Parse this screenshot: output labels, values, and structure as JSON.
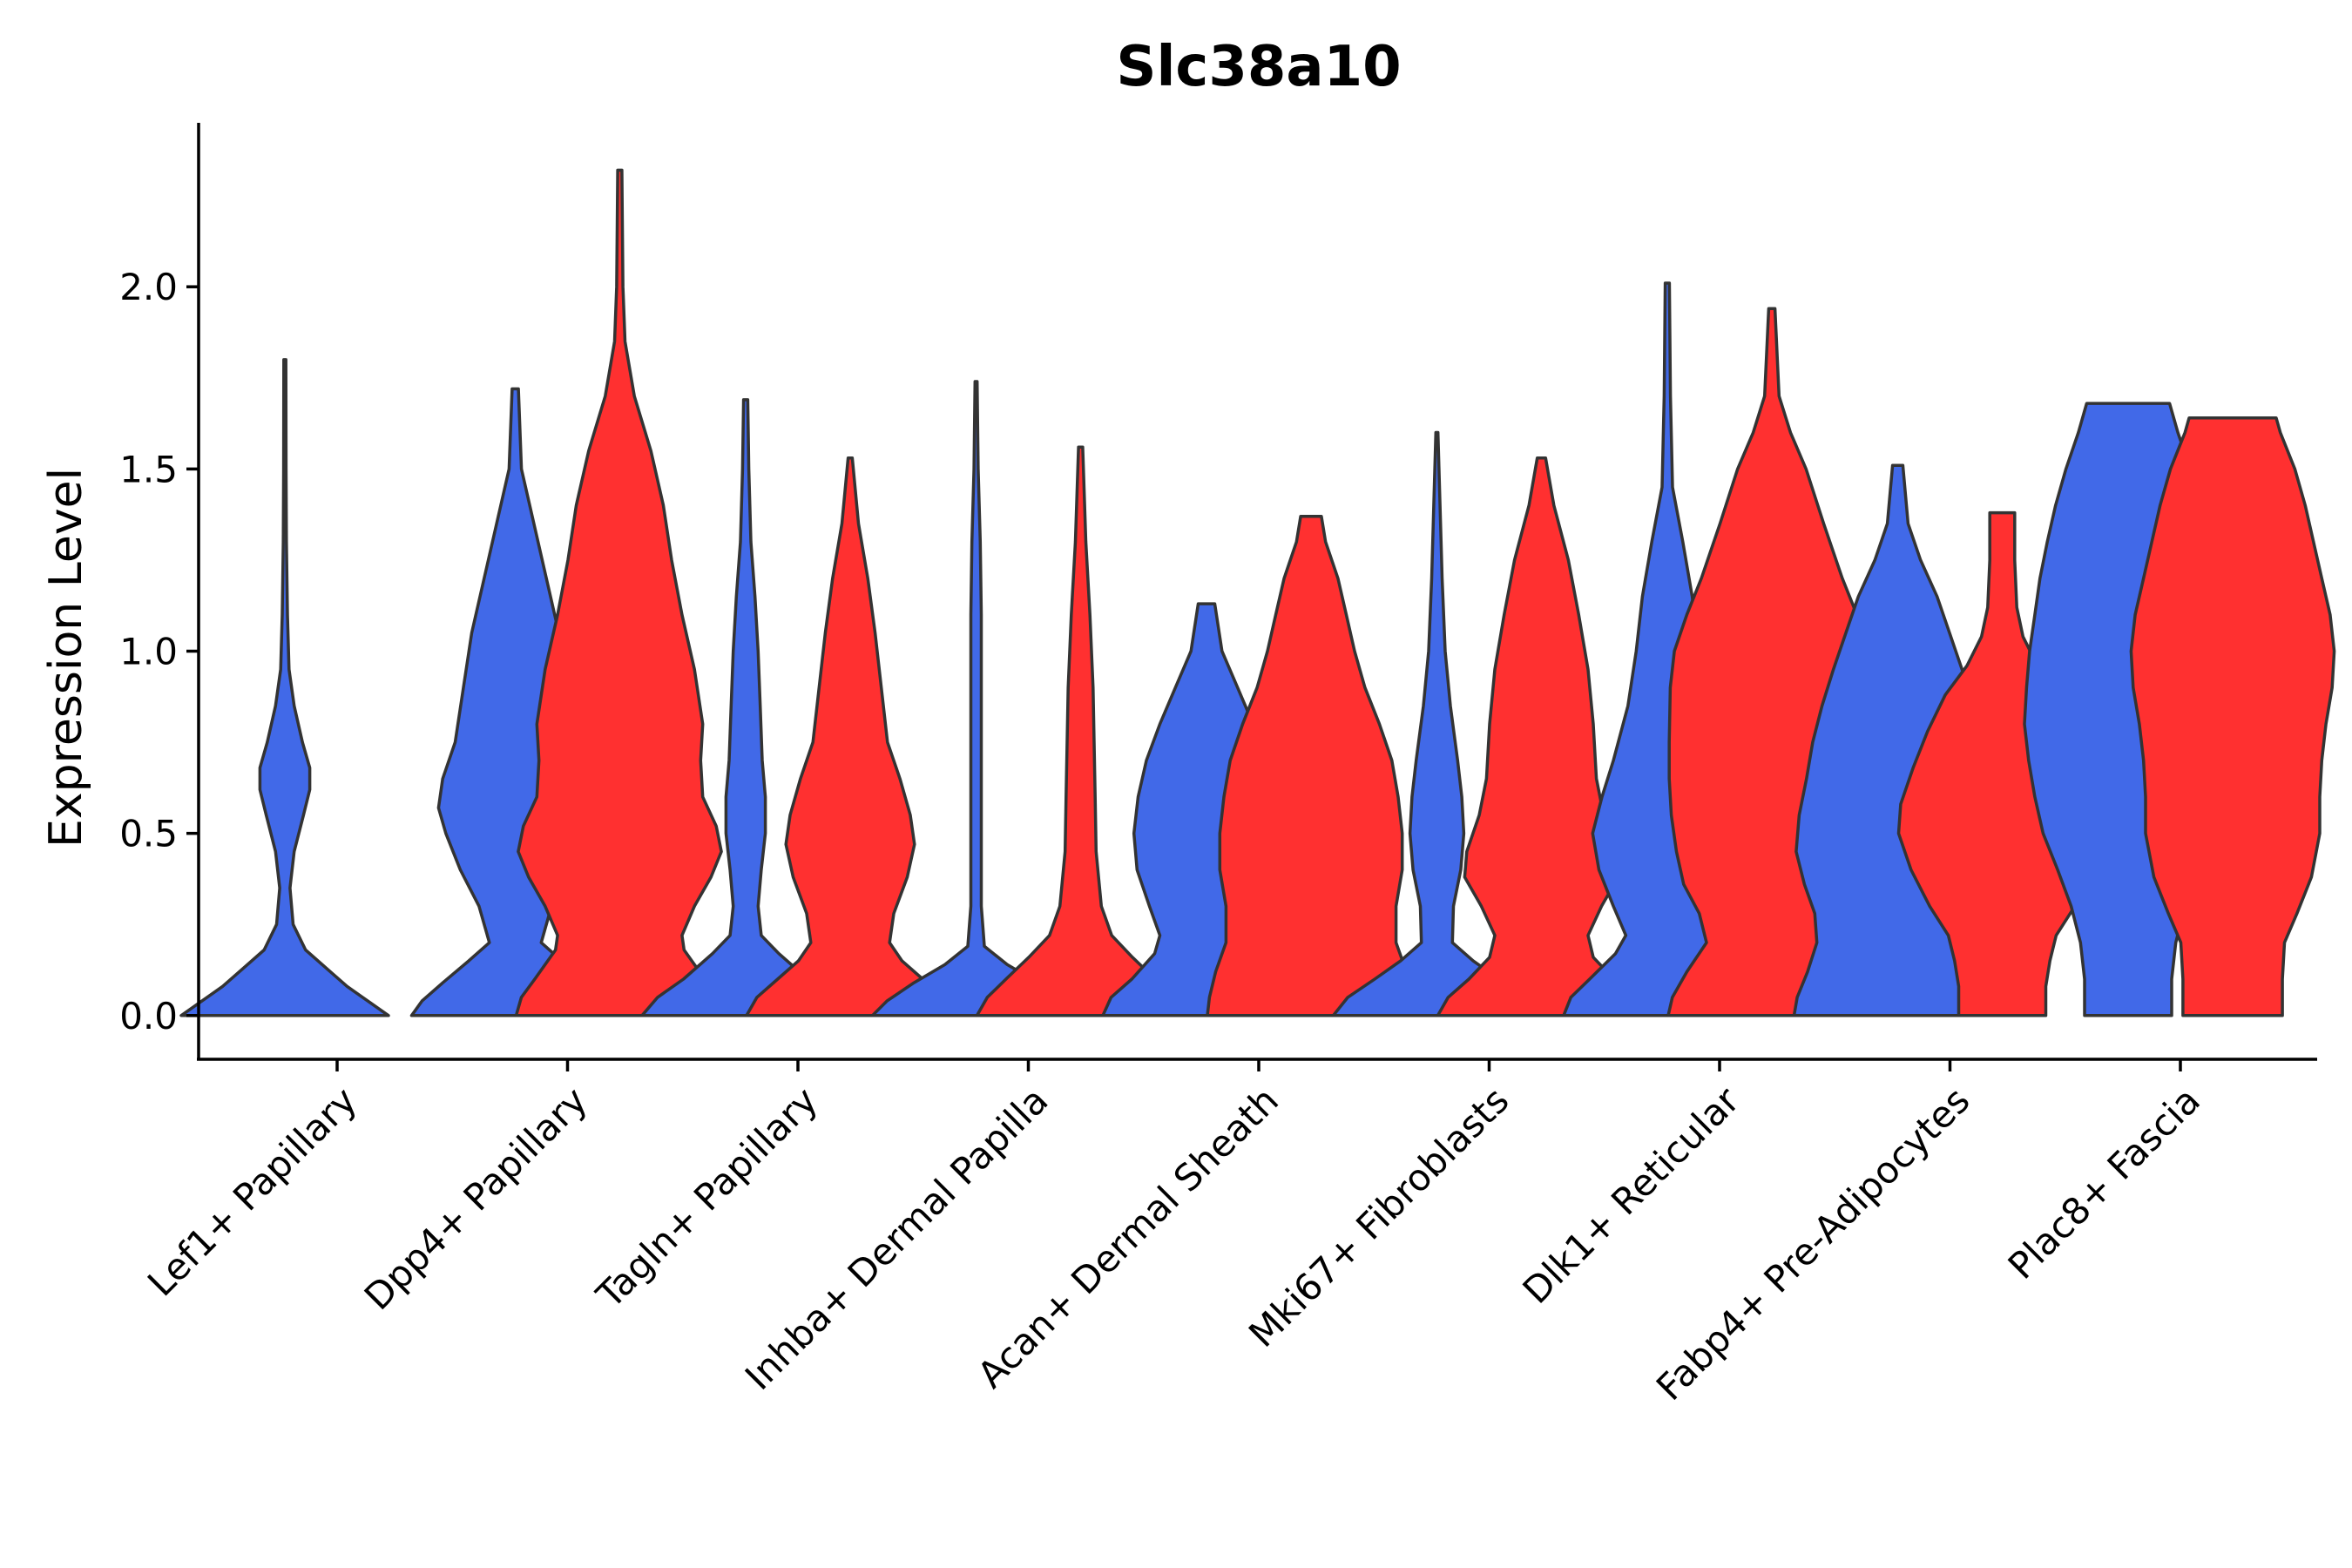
{
  "chart_data": {
    "type": "violin",
    "title": "Slc38a10",
    "xlabel": "",
    "ylabel": "Expression Level",
    "ylim": [
      -0.12,
      2.45
    ],
    "yticks": [
      "0.0",
      "0.5",
      "1.0",
      "1.5",
      "2.0"
    ],
    "ytick_values": [
      0,
      0.5,
      1.0,
      1.5,
      2.0
    ],
    "grid": false,
    "legend": "none",
    "series_colors": [
      "#4169E8",
      "#FF3030"
    ],
    "categories": [
      "Lef1+ Papillary",
      "Dpp4+ Papillary",
      "Tagln+ Papillary",
      "Inhba+ Dermal Papilla",
      "Acan+ Dermal Sheath",
      "Mki67+ Fibroblasts",
      "Dlk1+ Reticular",
      "Fabp4+ Pre-Adipocytes",
      "Plac8+ Fascia"
    ],
    "violins": [
      {
        "category": "Lef1+ Papillary",
        "group": 0,
        "max": 1.8,
        "profile": [
          [
            0,
            1.0
          ],
          [
            0.04,
            0.8
          ],
          [
            0.08,
            0.6
          ],
          [
            0.13,
            0.4
          ],
          [
            0.18,
            0.2
          ],
          [
            0.25,
            0.08
          ],
          [
            0.35,
            0.05
          ],
          [
            0.45,
            0.09
          ],
          [
            0.55,
            0.18
          ],
          [
            0.62,
            0.24
          ],
          [
            0.68,
            0.24
          ],
          [
            0.75,
            0.17
          ],
          [
            0.85,
            0.09
          ],
          [
            0.95,
            0.04
          ],
          [
            1.1,
            0.025
          ],
          [
            1.3,
            0.015
          ],
          [
            1.5,
            0.012
          ],
          [
            1.8,
            0.01
          ]
        ]
      },
      {
        "category": "Dpp4+ Papillary",
        "group": 0,
        "max": 1.72,
        "profile": [
          [
            0,
            1.0
          ],
          [
            0.04,
            0.9
          ],
          [
            0.09,
            0.7
          ],
          [
            0.15,
            0.45
          ],
          [
            0.2,
            0.25
          ],
          [
            0.3,
            0.35
          ],
          [
            0.4,
            0.53
          ],
          [
            0.5,
            0.67
          ],
          [
            0.57,
            0.74
          ],
          [
            0.65,
            0.7
          ],
          [
            0.75,
            0.58
          ],
          [
            0.9,
            0.5
          ],
          [
            1.05,
            0.42
          ],
          [
            1.2,
            0.3
          ],
          [
            1.35,
            0.18
          ],
          [
            1.5,
            0.06
          ],
          [
            1.72,
            0.03
          ]
        ]
      },
      {
        "category": "Dpp4+ Papillary",
        "group": 1,
        "max": 2.32,
        "profile": [
          [
            0,
            1.0
          ],
          [
            0.05,
            0.95
          ],
          [
            0.1,
            0.82
          ],
          [
            0.18,
            0.62
          ],
          [
            0.22,
            0.6
          ],
          [
            0.3,
            0.72
          ],
          [
            0.38,
            0.88
          ],
          [
            0.45,
            0.98
          ],
          [
            0.52,
            0.93
          ],
          [
            0.6,
            0.8
          ],
          [
            0.7,
            0.78
          ],
          [
            0.8,
            0.8
          ],
          [
            0.95,
            0.72
          ],
          [
            1.1,
            0.6
          ],
          [
            1.25,
            0.5
          ],
          [
            1.4,
            0.42
          ],
          [
            1.55,
            0.3
          ],
          [
            1.7,
            0.14
          ],
          [
            1.85,
            0.05
          ],
          [
            2.0,
            0.03
          ],
          [
            2.32,
            0.02
          ]
        ]
      },
      {
        "category": "Tagln+ Papillary",
        "group": 0,
        "max": 1.69,
        "profile": [
          [
            0,
            1.0
          ],
          [
            0.05,
            0.85
          ],
          [
            0.1,
            0.6
          ],
          [
            0.17,
            0.32
          ],
          [
            0.22,
            0.15
          ],
          [
            0.3,
            0.12
          ],
          [
            0.4,
            0.15
          ],
          [
            0.5,
            0.19
          ],
          [
            0.6,
            0.19
          ],
          [
            0.7,
            0.16
          ],
          [
            0.85,
            0.14
          ],
          [
            1.0,
            0.12
          ],
          [
            1.15,
            0.09
          ],
          [
            1.3,
            0.05
          ],
          [
            1.5,
            0.03
          ],
          [
            1.69,
            0.02
          ]
        ]
      },
      {
        "category": "Tagln+ Papillary",
        "group": 1,
        "max": 1.53,
        "profile": [
          [
            0,
            1.0
          ],
          [
            0.05,
            0.9
          ],
          [
            0.1,
            0.7
          ],
          [
            0.15,
            0.5
          ],
          [
            0.2,
            0.38
          ],
          [
            0.28,
            0.42
          ],
          [
            0.38,
            0.55
          ],
          [
            0.47,
            0.62
          ],
          [
            0.55,
            0.58
          ],
          [
            0.65,
            0.48
          ],
          [
            0.75,
            0.36
          ],
          [
            0.9,
            0.3
          ],
          [
            1.05,
            0.24
          ],
          [
            1.2,
            0.17
          ],
          [
            1.35,
            0.08
          ],
          [
            1.53,
            0.02
          ]
        ]
      },
      {
        "category": "Inhba+ Dermal Papilla",
        "group": 0,
        "max": 1.74,
        "profile": [
          [
            0,
            1.0
          ],
          [
            0.04,
            0.86
          ],
          [
            0.09,
            0.6
          ],
          [
            0.14,
            0.3
          ],
          [
            0.19,
            0.08
          ],
          [
            0.3,
            0.05
          ],
          [
            0.5,
            0.05
          ],
          [
            0.7,
            0.05
          ],
          [
            0.9,
            0.05
          ],
          [
            1.1,
            0.05
          ],
          [
            1.3,
            0.04
          ],
          [
            1.5,
            0.02
          ],
          [
            1.74,
            0.01
          ]
        ]
      },
      {
        "category": "Inhba+ Dermal Papilla",
        "group": 1,
        "max": 1.56,
        "profile": [
          [
            0,
            1.0
          ],
          [
            0.05,
            0.9
          ],
          [
            0.1,
            0.72
          ],
          [
            0.16,
            0.5
          ],
          [
            0.22,
            0.3
          ],
          [
            0.3,
            0.2
          ],
          [
            0.45,
            0.15
          ],
          [
            0.6,
            0.14
          ],
          [
            0.75,
            0.13
          ],
          [
            0.9,
            0.12
          ],
          [
            1.1,
            0.09
          ],
          [
            1.3,
            0.05
          ],
          [
            1.56,
            0.02
          ]
        ]
      },
      {
        "category": "Acan+ Dermal Sheath",
        "group": 0,
        "max": 1.13,
        "profile": [
          [
            0,
            1.0
          ],
          [
            0.05,
            0.92
          ],
          [
            0.1,
            0.72
          ],
          [
            0.17,
            0.5
          ],
          [
            0.22,
            0.45
          ],
          [
            0.3,
            0.55
          ],
          [
            0.4,
            0.67
          ],
          [
            0.5,
            0.7
          ],
          [
            0.6,
            0.66
          ],
          [
            0.7,
            0.58
          ],
          [
            0.8,
            0.45
          ],
          [
            0.9,
            0.3
          ],
          [
            1.0,
            0.15
          ],
          [
            1.13,
            0.08
          ]
        ]
      },
      {
        "category": "Acan+ Dermal Sheath",
        "group": 1,
        "max": 1.37,
        "profile": [
          [
            0,
            1.0
          ],
          [
            0.05,
            0.98
          ],
          [
            0.12,
            0.92
          ],
          [
            0.2,
            0.82
          ],
          [
            0.3,
            0.82
          ],
          [
            0.4,
            0.88
          ],
          [
            0.5,
            0.88
          ],
          [
            0.6,
            0.84
          ],
          [
            0.7,
            0.78
          ],
          [
            0.8,
            0.66
          ],
          [
            0.9,
            0.52
          ],
          [
            1.0,
            0.42
          ],
          [
            1.1,
            0.34
          ],
          [
            1.2,
            0.26
          ],
          [
            1.3,
            0.14
          ],
          [
            1.37,
            0.1
          ]
        ]
      },
      {
        "category": "Mki67+ Fibroblasts",
        "group": 0,
        "max": 1.6,
        "profile": [
          [
            0,
            1.0
          ],
          [
            0.05,
            0.86
          ],
          [
            0.1,
            0.6
          ],
          [
            0.15,
            0.35
          ],
          [
            0.2,
            0.15
          ],
          [
            0.3,
            0.16
          ],
          [
            0.4,
            0.23
          ],
          [
            0.5,
            0.26
          ],
          [
            0.6,
            0.24
          ],
          [
            0.7,
            0.2
          ],
          [
            0.85,
            0.13
          ],
          [
            1.0,
            0.08
          ],
          [
            1.2,
            0.05
          ],
          [
            1.4,
            0.03
          ],
          [
            1.6,
            0.01
          ]
        ]
      },
      {
        "category": "Mki67+ Fibroblasts",
        "group": 1,
        "max": 1.53,
        "profile": [
          [
            0,
            1.0
          ],
          [
            0.05,
            0.9
          ],
          [
            0.1,
            0.7
          ],
          [
            0.16,
            0.5
          ],
          [
            0.22,
            0.45
          ],
          [
            0.3,
            0.58
          ],
          [
            0.38,
            0.74
          ],
          [
            0.45,
            0.72
          ],
          [
            0.55,
            0.6
          ],
          [
            0.65,
            0.53
          ],
          [
            0.8,
            0.5
          ],
          [
            0.95,
            0.45
          ],
          [
            1.1,
            0.36
          ],
          [
            1.25,
            0.26
          ],
          [
            1.4,
            0.12
          ],
          [
            1.53,
            0.04
          ]
        ]
      },
      {
        "category": "Dlk1+ Reticular",
        "group": 0,
        "max": 2.01,
        "profile": [
          [
            0,
            1.0
          ],
          [
            0.05,
            0.93
          ],
          [
            0.1,
            0.75
          ],
          [
            0.17,
            0.5
          ],
          [
            0.22,
            0.4
          ],
          [
            0.3,
            0.52
          ],
          [
            0.4,
            0.66
          ],
          [
            0.5,
            0.72
          ],
          [
            0.6,
            0.63
          ],
          [
            0.7,
            0.52
          ],
          [
            0.85,
            0.38
          ],
          [
            1.0,
            0.3
          ],
          [
            1.15,
            0.24
          ],
          [
            1.3,
            0.15
          ],
          [
            1.45,
            0.05
          ],
          [
            1.7,
            0.03
          ],
          [
            2.01,
            0.02
          ]
        ]
      },
      {
        "category": "Dlk1+ Reticular",
        "group": 1,
        "max": 1.94,
        "profile": [
          [
            0,
            1.0
          ],
          [
            0.05,
            0.96
          ],
          [
            0.12,
            0.82
          ],
          [
            0.2,
            0.63
          ],
          [
            0.28,
            0.7
          ],
          [
            0.36,
            0.85
          ],
          [
            0.45,
            0.92
          ],
          [
            0.55,
            0.97
          ],
          [
            0.65,
            0.99
          ],
          [
            0.75,
            0.99
          ],
          [
            0.9,
            0.98
          ],
          [
            1.0,
            0.94
          ],
          [
            1.1,
            0.82
          ],
          [
            1.2,
            0.68
          ],
          [
            1.35,
            0.5
          ],
          [
            1.5,
            0.33
          ],
          [
            1.6,
            0.18
          ],
          [
            1.7,
            0.07
          ],
          [
            1.94,
            0.03
          ]
        ]
      },
      {
        "category": "Fabp4+ Pre-Adipocytes",
        "group": 0,
        "max": 1.51,
        "profile": [
          [
            0,
            1.0
          ],
          [
            0.05,
            0.97
          ],
          [
            0.12,
            0.87
          ],
          [
            0.2,
            0.78
          ],
          [
            0.28,
            0.8
          ],
          [
            0.36,
            0.9
          ],
          [
            0.45,
            0.98
          ],
          [
            0.55,
            0.95
          ],
          [
            0.65,
            0.88
          ],
          [
            0.75,
            0.82
          ],
          [
            0.85,
            0.73
          ],
          [
            0.95,
            0.62
          ],
          [
            1.05,
            0.5
          ],
          [
            1.15,
            0.38
          ],
          [
            1.25,
            0.22
          ],
          [
            1.35,
            0.1
          ],
          [
            1.51,
            0.05
          ]
        ]
      },
      {
        "category": "Fabp4+ Pre-Adipocytes",
        "group": 1,
        "max": 1.38,
        "profile": [
          [
            0,
            0.42
          ],
          [
            0.08,
            0.42
          ],
          [
            0.15,
            0.46
          ],
          [
            0.22,
            0.52
          ],
          [
            0.3,
            0.7
          ],
          [
            0.4,
            0.88
          ],
          [
            0.5,
            1.0
          ],
          [
            0.58,
            0.98
          ],
          [
            0.68,
            0.86
          ],
          [
            0.78,
            0.72
          ],
          [
            0.88,
            0.55
          ],
          [
            0.96,
            0.34
          ],
          [
            1.04,
            0.2
          ],
          [
            1.12,
            0.14
          ],
          [
            1.25,
            0.12
          ],
          [
            1.38,
            0.12
          ]
        ]
      },
      {
        "category": "Plac8+ Fascia",
        "group": 0,
        "max": 1.68,
        "profile": [
          [
            0,
            0.42
          ],
          [
            0.1,
            0.42
          ],
          [
            0.2,
            0.46
          ],
          [
            0.3,
            0.55
          ],
          [
            0.4,
            0.68
          ],
          [
            0.5,
            0.82
          ],
          [
            0.6,
            0.9
          ],
          [
            0.7,
            0.96
          ],
          [
            0.8,
            1.0
          ],
          [
            0.9,
            0.98
          ],
          [
            1.0,
            0.95
          ],
          [
            1.1,
            0.9
          ],
          [
            1.2,
            0.85
          ],
          [
            1.3,
            0.78
          ],
          [
            1.4,
            0.7
          ],
          [
            1.5,
            0.6
          ],
          [
            1.6,
            0.48
          ],
          [
            1.68,
            0.4
          ]
        ]
      },
      {
        "category": "Plac8+ Fascia",
        "group": 1,
        "max": 1.64,
        "profile": [
          [
            0,
            0.48
          ],
          [
            0.1,
            0.48
          ],
          [
            0.2,
            0.5
          ],
          [
            0.28,
            0.62
          ],
          [
            0.38,
            0.76
          ],
          [
            0.5,
            0.84
          ],
          [
            0.6,
            0.84
          ],
          [
            0.7,
            0.86
          ],
          [
            0.8,
            0.9
          ],
          [
            0.9,
            0.96
          ],
          [
            1.0,
            0.98
          ],
          [
            1.1,
            0.94
          ],
          [
            1.2,
            0.86
          ],
          [
            1.3,
            0.78
          ],
          [
            1.4,
            0.7
          ],
          [
            1.5,
            0.6
          ],
          [
            1.6,
            0.46
          ],
          [
            1.64,
            0.42
          ]
        ]
      }
    ]
  }
}
